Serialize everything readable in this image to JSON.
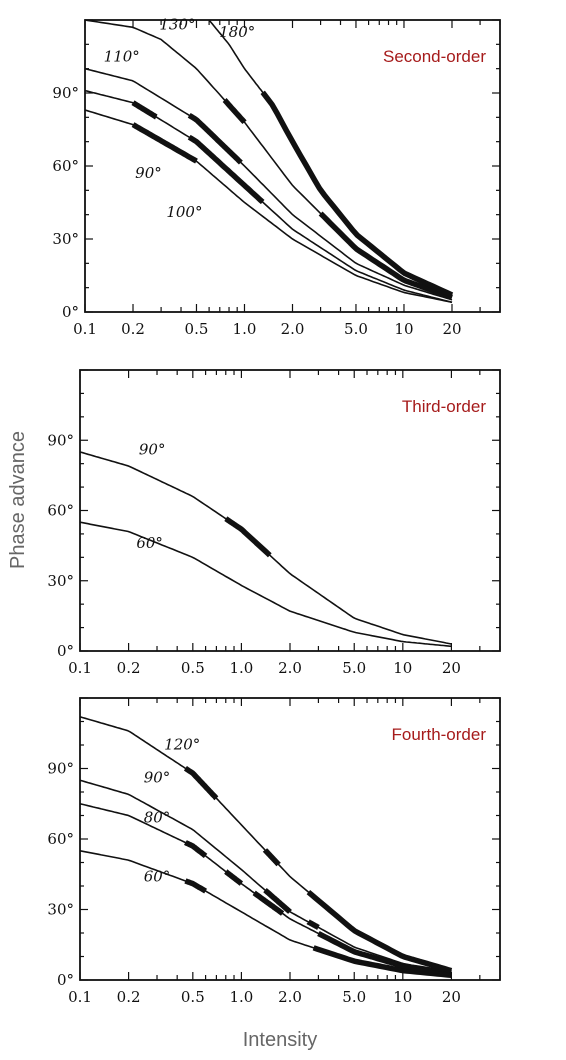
{
  "figure": {
    "ylabel": "Phase advance",
    "xlabel": "Intensity"
  },
  "chart_data": [
    {
      "type": "line",
      "title": "Second-order",
      "x_scale": "log",
      "xlim": [
        0.1,
        40
      ],
      "ylim": [
        0,
        120
      ],
      "x_ticks": [
        0.1,
        0.2,
        0.5,
        1.0,
        2.0,
        5.0,
        10,
        20
      ],
      "x_tick_labels": [
        "0.1",
        "0.2",
        "0.5",
        "1.0",
        "2.0",
        "5.0",
        "10",
        "20"
      ],
      "y_ticks": [
        0,
        30,
        60,
        90
      ],
      "y_tick_labels": [
        "0°",
        "30°",
        "60°",
        "90°"
      ],
      "series": [
        {
          "name": "90°",
          "x": [
            0.1,
            0.2,
            0.5,
            1.0,
            2.0,
            5.0,
            10,
            20
          ],
          "y": [
            83,
            77,
            62,
            45,
            30,
            15,
            8,
            4
          ],
          "thick": [
            [
              0.2,
              0.5
            ]
          ]
        },
        {
          "name": "100°",
          "x": [
            0.1,
            0.2,
            0.5,
            1.0,
            2.0,
            5.0,
            10,
            20
          ],
          "y": [
            91,
            86,
            70,
            52,
            34,
            17,
            9,
            4
          ],
          "thick": [
            [
              0.2,
              0.28
            ],
            [
              0.45,
              1.3
            ]
          ]
        },
        {
          "name": "110°",
          "x": [
            0.1,
            0.2,
            0.5,
            1.0,
            2.0,
            5.0,
            10,
            20
          ],
          "y": [
            100,
            95,
            79,
            60,
            40,
            20,
            11,
            5
          ],
          "thick": [
            [
              0.45,
              0.95
            ]
          ]
        },
        {
          "name": "130°",
          "x": [
            0.1,
            0.2,
            0.3,
            0.5,
            1.0,
            2.0,
            5.0,
            10,
            20
          ],
          "y": [
            120,
            117,
            112,
            100,
            78,
            52,
            26,
            13,
            6
          ],
          "thick": [
            [
              0.75,
              1.0
            ],
            [
              3.0,
              20
            ]
          ]
        },
        {
          "name": "180°",
          "x": [
            0.6,
            0.8,
            1.0,
            1.5,
            2.0,
            3.0,
            5.0,
            10,
            20
          ],
          "y": [
            120,
            110,
            100,
            85,
            70,
            50,
            32,
            16,
            7
          ],
          "thick": [
            [
              1.3,
              20
            ]
          ]
        }
      ],
      "curve_labels": [
        {
          "text": "90°",
          "x": 0.25,
          "y": 55
        },
        {
          "text": "100°",
          "x": 0.42,
          "y": 39
        },
        {
          "text": "110°",
          "x": 0.17,
          "y": 103
        },
        {
          "text": "130°",
          "x": 0.38,
          "y": 116
        },
        {
          "text": "180°",
          "x": 0.9,
          "y": 113
        }
      ]
    },
    {
      "type": "line",
      "title": "Third-order",
      "x_scale": "log",
      "xlim": [
        0.1,
        40
      ],
      "ylim": [
        0,
        120
      ],
      "x_ticks": [
        0.1,
        0.2,
        0.5,
        1.0,
        2.0,
        5.0,
        10,
        20
      ],
      "x_tick_labels": [
        "0.1",
        "0.2",
        "0.5",
        "1.0",
        "2.0",
        "5.0",
        "10",
        "20"
      ],
      "y_ticks": [
        0,
        30,
        60,
        90
      ],
      "y_tick_labels": [
        "0°",
        "30°",
        "60°",
        "90°"
      ],
      "series": [
        {
          "name": "90°",
          "x": [
            0.1,
            0.2,
            0.5,
            1.0,
            2.0,
            5.0,
            10,
            20
          ],
          "y": [
            85,
            79,
            66,
            52,
            33,
            14,
            7,
            3
          ],
          "thick": [
            [
              0.8,
              1.5
            ]
          ]
        },
        {
          "name": "60°",
          "x": [
            0.1,
            0.2,
            0.5,
            1.0,
            2.0,
            5.0,
            10,
            20
          ],
          "y": [
            55,
            51,
            40,
            28,
            17,
            8,
            4,
            2
          ],
          "thick": []
        }
      ],
      "curve_labels": [
        {
          "text": "90°",
          "x": 0.28,
          "y": 84
        },
        {
          "text": "60°",
          "x": 0.27,
          "y": 44
        }
      ]
    },
    {
      "type": "line",
      "title": "Fourth-order",
      "x_scale": "log",
      "xlim": [
        0.1,
        40
      ],
      "ylim": [
        0,
        120
      ],
      "x_ticks": [
        0.1,
        0.2,
        0.5,
        1.0,
        2.0,
        5.0,
        10,
        20
      ],
      "x_tick_labels": [
        "0.1",
        "0.2",
        "0.5",
        "1.0",
        "2.0",
        "5.0",
        "10",
        "20"
      ],
      "y_ticks": [
        0,
        30,
        60,
        90
      ],
      "y_tick_labels": [
        "0°",
        "30°",
        "60°",
        "90°"
      ],
      "series": [
        {
          "name": "60°",
          "x": [
            0.1,
            0.2,
            0.5,
            1.0,
            2.0,
            5.0,
            10,
            20
          ],
          "y": [
            55,
            51,
            41,
            29,
            17,
            8,
            4,
            2
          ],
          "thick": [
            [
              0.45,
              0.6
            ],
            [
              2.8,
              20
            ]
          ]
        },
        {
          "name": "80°",
          "x": [
            0.1,
            0.2,
            0.5,
            1.0,
            2.0,
            5.0,
            10,
            20
          ],
          "y": [
            75,
            70,
            57,
            41,
            26,
            12,
            6,
            3
          ],
          "thick": [
            [
              0.45,
              0.6
            ],
            [
              0.8,
              1.0
            ],
            [
              1.2,
              1.8
            ],
            [
              3.0,
              20
            ]
          ]
        },
        {
          "name": "90°",
          "x": [
            0.1,
            0.2,
            0.5,
            1.0,
            2.0,
            5.0,
            10,
            20
          ],
          "y": [
            85,
            79,
            64,
            47,
            29,
            14,
            7,
            3
          ],
          "thick": [
            [
              1.4,
              2.0
            ],
            [
              2.6,
              3.0
            ]
          ]
        },
        {
          "name": "120°",
          "x": [
            0.1,
            0.2,
            0.5,
            1.0,
            2.0,
            5.0,
            10,
            20
          ],
          "y": [
            112,
            106,
            88,
            66,
            44,
            21,
            10,
            4
          ],
          "thick": [
            [
              0.45,
              0.7
            ],
            [
              1.4,
              1.7
            ],
            [
              2.6,
              20
            ]
          ]
        }
      ],
      "curve_labels": [
        {
          "text": "60°",
          "x": 0.3,
          "y": 42
        },
        {
          "text": "80°",
          "x": 0.3,
          "y": 67
        },
        {
          "text": "90°",
          "x": 0.3,
          "y": 84
        },
        {
          "text": "120°",
          "x": 0.43,
          "y": 98
        }
      ]
    }
  ]
}
